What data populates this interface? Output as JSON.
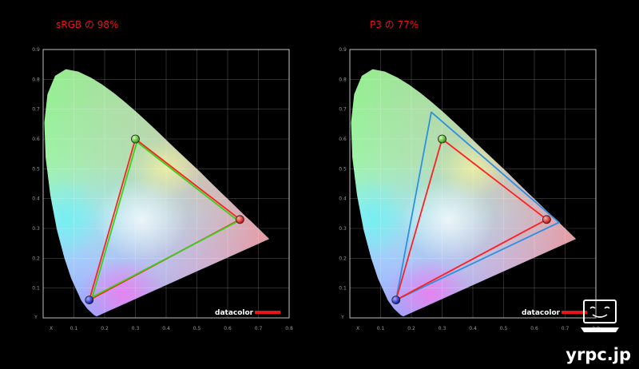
{
  "chart_data": [
    {
      "type": "scatter",
      "title": "sRGB の 98%",
      "x_ticks": [
        "X",
        "0.1",
        "0.2",
        "0.3",
        "0.4",
        "0.5",
        "0.6",
        "0.7",
        "0.8"
      ],
      "y_ticks": [
        "Y",
        "0.1",
        "0.2",
        "0.3",
        "0.4",
        "0.5",
        "0.6",
        "0.7",
        "0.8",
        "0.9"
      ],
      "xlim": [
        0,
        0.8
      ],
      "ylim": [
        0,
        0.9
      ],
      "grid": true,
      "series": [
        {
          "color": "#ff2020",
          "points": [
            [
              0.64,
              0.33
            ],
            [
              0.3,
              0.6
            ],
            [
              0.15,
              0.06
            ]
          ]
        },
        {
          "color": "#39d11a",
          "points": [
            [
              0.635,
              0.325
            ],
            [
              0.305,
              0.59
            ],
            [
              0.16,
              0.07
            ]
          ]
        }
      ],
      "primaries": [
        [
          0.64,
          0.33
        ],
        [
          0.3,
          0.6
        ],
        [
          0.15,
          0.06
        ]
      ]
    },
    {
      "type": "scatter",
      "title": "P3 の 77%",
      "x_ticks": [
        "X",
        "0.1",
        "0.2",
        "0.3",
        "0.4",
        "0.5",
        "0.6",
        "0.7",
        "0.8"
      ],
      "y_ticks": [
        "Y",
        "0.1",
        "0.2",
        "0.3",
        "0.4",
        "0.5",
        "0.6",
        "0.7",
        "0.8",
        "0.9"
      ],
      "xlim": [
        0,
        0.8
      ],
      "ylim": [
        0,
        0.9
      ],
      "grid": true,
      "series": [
        {
          "color": "#2f8fe0",
          "points": [
            [
              0.68,
              0.32
            ],
            [
              0.265,
              0.69
            ],
            [
              0.15,
              0.06
            ]
          ]
        },
        {
          "color": "#ff2020",
          "points": [
            [
              0.64,
              0.33
            ],
            [
              0.3,
              0.6
            ],
            [
              0.15,
              0.06
            ]
          ]
        }
      ],
      "primaries": [
        [
          0.64,
          0.33
        ],
        [
          0.3,
          0.6
        ],
        [
          0.15,
          0.06
        ]
      ]
    }
  ],
  "logo": {
    "text": "datacolor",
    "bar_color": "#e8141c"
  },
  "watermark": {
    "text": "yrpc.jp"
  }
}
